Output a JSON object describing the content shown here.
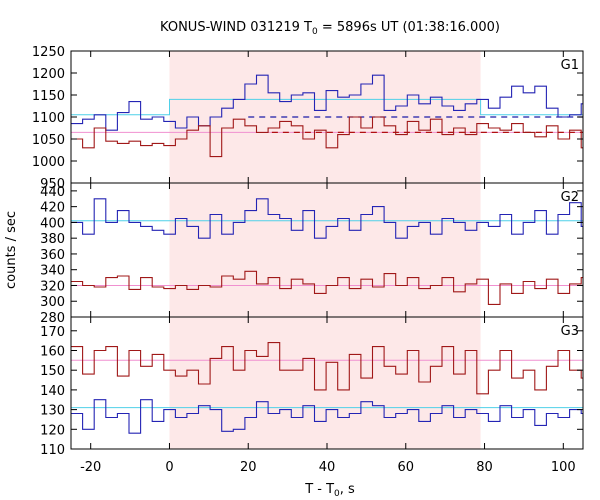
{
  "chart_data": {
    "type": "line",
    "title": "KONUS-WIND 031219 T",
    "title_sub": "0",
    "title_rest": " = 5896s UT (01:38:16.000)",
    "xlabel": "T - T",
    "xlabel_sub": "0",
    "xlabel_rest": ", s",
    "ylabel": "counts / sec",
    "xlim": [
      -25,
      105
    ],
    "x_ticks": [
      -20,
      0,
      20,
      40,
      60,
      80,
      100
    ],
    "x_tick_labels": [
      "-20",
      "0",
      "20",
      "40",
      "60",
      "80",
      "100"
    ],
    "highlight": {
      "x0": 0,
      "x1": 79,
      "color": "#fde8e8"
    },
    "colors": {
      "blue": "#2424b4",
      "red": "#a01818",
      "cyan": "#4fd0e8",
      "pink": "#f090d0",
      "dash_blue": "#1c1ca8",
      "dash_red": "#b01010"
    },
    "bin_width": 2.944,
    "x_start": -25,
    "panels": [
      {
        "name": "G1",
        "ylim": [
          950,
          1250
        ],
        "yticks": [
          950,
          1000,
          1050,
          1100,
          1150,
          1200,
          1250
        ],
        "ytick_labels": [
          "950",
          "1000",
          "1050",
          "1100",
          "1150",
          "1200",
          "1250"
        ],
        "series": [
          {
            "color": "blue",
            "values": [
              1085,
              1095,
              1105,
              1070,
              1110,
              1135,
              1095,
              1100,
              1090,
              1075,
              1100,
              1080,
              1100,
              1120,
              1140,
              1175,
              1195,
              1155,
              1135,
              1150,
              1155,
              1115,
              1160,
              1145,
              1150,
              1175,
              1195,
              1115,
              1125,
              1150,
              1130,
              1145,
              1125,
              1115,
              1130,
              1140,
              1120,
              1145,
              1170,
              1155,
              1170,
              1120,
              1100,
              1105,
              1130,
              1100,
              1135,
              1110,
              1110,
              1125,
              1100,
              1140,
              1085,
              1090,
              1120,
              1075,
              1135,
              1090,
              1100,
              1115,
              1080
            ]
          },
          {
            "color": "red",
            "values": [
              1050,
              1030,
              1075,
              1045,
              1040,
              1045,
              1035,
              1040,
              1035,
              1050,
              1070,
              1080,
              1010,
              1075,
              1095,
              1080,
              1065,
              1075,
              1090,
              1080,
              1050,
              1070,
              1030,
              1060,
              1100,
              1075,
              1100,
              1080,
              1060,
              1090,
              1070,
              1095,
              1060,
              1075,
              1060,
              1085,
              1075,
              1070,
              1085,
              1065,
              1055,
              1080,
              1050,
              1070,
              1030,
              1075,
              1050,
              1100,
              1085,
              1060,
              1055,
              1075,
              1065,
              1070,
              1075,
              1085,
              1045,
              1050,
              1090,
              1055,
              1055
            ]
          }
        ],
        "fits": [
          {
            "color": "cyan",
            "segments": [
              {
                "x0": -25,
                "x1": 0,
                "y": 1105
              },
              {
                "x0": 0,
                "x1": 79,
                "y": 1140
              },
              {
                "x0": 79,
                "x1": 105,
                "y": 1105
              }
            ],
            "verticals": [
              0,
              79
            ]
          },
          {
            "color": "pink",
            "segments": [
              {
                "x0": -25,
                "x1": 105,
                "y": 1065
              }
            ]
          }
        ],
        "dashes": [
          {
            "color": "dash_blue",
            "x0": 20,
            "x1": 105,
            "y": 1100
          },
          {
            "color": "dash_red",
            "x0": 26,
            "x1": 105,
            "y": 1065
          }
        ]
      },
      {
        "name": "G2",
        "ylim": [
          280,
          450
        ],
        "yticks": [
          280,
          300,
          320,
          340,
          360,
          380,
          400,
          420,
          440
        ],
        "ytick_labels": [
          "280",
          "300",
          "320",
          "340",
          "360",
          "380",
          "400",
          "420",
          "440"
        ],
        "series": [
          {
            "color": "blue",
            "values": [
              400,
              385,
              430,
              400,
              415,
              400,
              395,
              390,
              385,
              405,
              395,
              380,
              410,
              385,
              400,
              415,
              430,
              410,
              405,
              390,
              415,
              380,
              395,
              405,
              390,
              410,
              420,
              400,
              380,
              395,
              400,
              385,
              405,
              400,
              390,
              400,
              395,
              410,
              385,
              400,
              415,
              385,
              410,
              425,
              395,
              405,
              390,
              380,
              400,
              410,
              395,
              375,
              390,
              400,
              385,
              410,
              395,
              400,
              415,
              390,
              405
            ]
          },
          {
            "color": "red",
            "values": [
              325,
              320,
              318,
              330,
              332,
              315,
              330,
              318,
              316,
              320,
              315,
              320,
              318,
              332,
              328,
              338,
              322,
              330,
              316,
              328,
              322,
              310,
              320,
              330,
              316,
              328,
              318,
              335,
              320,
              330,
              316,
              320,
              330,
              312,
              322,
              328,
              296,
              322,
              310,
              325,
              316,
              328,
              310,
              322,
              330,
              320,
              315,
              326,
              300,
              330,
              320,
              318,
              322,
              312,
              318,
              325,
              328,
              316,
              302,
              320,
              328
            ]
          }
        ],
        "fits": [
          {
            "color": "cyan",
            "segments": [
              {
                "x0": -25,
                "x1": 105,
                "y": 402
              }
            ]
          },
          {
            "color": "pink",
            "segments": [
              {
                "x0": -25,
                "x1": 105,
                "y": 320
              }
            ]
          }
        ],
        "dashes": []
      },
      {
        "name": "G3",
        "ylim": [
          110,
          177
        ],
        "yticks": [
          110,
          120,
          130,
          140,
          150,
          160,
          170
        ],
        "ytick_labels": [
          "110",
          "120",
          "130",
          "140",
          "150",
          "160",
          "170"
        ],
        "series": [
          {
            "color": "blue",
            "values": [
              128,
              120,
              135,
              126,
              128,
              118,
              135,
              124,
              130,
              126,
              128,
              132,
              130,
              119,
              120,
              126,
              134,
              128,
              130,
              126,
              132,
              124,
              130,
              126,
              128,
              134,
              132,
              126,
              128,
              130,
              124,
              128,
              132,
              126,
              130,
              128,
              124,
              132,
              126,
              130,
              122,
              128,
              126,
              130,
              128,
              124,
              130,
              132,
              126,
              128,
              124,
              130,
              126,
              130,
              128,
              122,
              134,
              130,
              126,
              128,
              132
            ]
          },
          {
            "color": "red",
            "values": [
              162,
              148,
              160,
              162,
              147,
              160,
              152,
              158,
              150,
              147,
              150,
              143,
              156,
              162,
              150,
              160,
              157,
              164,
              150,
              150,
              156,
              140,
              154,
              140,
              158,
              146,
              162,
              152,
              148,
              160,
              144,
              152,
              162,
              148,
              160,
              138,
              150,
              160,
              146,
              150,
              140,
              152,
              160,
              150,
              146,
              140,
              144,
              138,
              150,
              140,
              162,
              150,
              140,
              152,
              146,
              148,
              156,
              160,
              150,
              140,
              152
            ]
          }
        ],
        "fits": [
          {
            "color": "cyan",
            "segments": [
              {
                "x0": -25,
                "x1": 105,
                "y": 131
              }
            ]
          },
          {
            "color": "pink",
            "segments": [
              {
                "x0": -25,
                "x1": 105,
                "y": 155
              }
            ]
          }
        ],
        "dashes": []
      }
    ]
  }
}
